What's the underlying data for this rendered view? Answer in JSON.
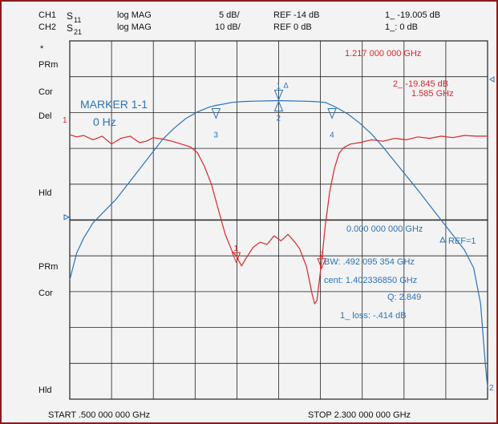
{
  "colors": {
    "frame": "#8b1a1a",
    "background": "#f3f3f3",
    "grid": "#222222",
    "ch1": "#d9262c",
    "ch2": "#2b74b8",
    "text": "#111111"
  },
  "header": {
    "ch1": {
      "label": "CH1",
      "param": "S",
      "param_sub": "11",
      "format": "log MAG",
      "scale": "5 dB/",
      "ref": "REF -14 dB",
      "marker": "1_ -19.005 dB"
    },
    "ch2": {
      "label": "CH2",
      "param": "S",
      "param_sub": "21",
      "format": "log MAG",
      "scale": "10 dB/",
      "ref": "REF 0 dB",
      "marker": "1_: 0     dB"
    }
  },
  "side_labels": {
    "star": "*",
    "prm1": "PRm",
    "cor1": "Cor",
    "del": "Del",
    "hld1": "Hld",
    "prm2": "PRm",
    "cor2": "Cor",
    "hld2": "Hld"
  },
  "annotations": {
    "ch1_marker_freq": "1.217 000 000 GHz",
    "ch1_marker2_value": "2_ -19.845 dB",
    "ch1_marker2_freq": "1.585 GHz",
    "marker_title": "MARKER 1-1",
    "marker_freq": "0 Hz",
    "ch2_marker_freq": "0.000 000 000 GHz",
    "ref_label": "REF=1",
    "bw": "BW:  .492 095 354 GHz",
    "cent": "cent: 1.402336850 GHz",
    "q": "Q: 2.849",
    "loss": "1_ loss: -.414   dB"
  },
  "footer": {
    "start": "START  .500 000 000 GHz",
    "stop": "STOP  2.300 000 000 GHz"
  },
  "chart_data": {
    "type": "line",
    "x_unit": "GHz",
    "xlim": [
      0.5,
      2.3
    ],
    "grid": true,
    "x_divisions": 10,
    "y_divisions": 10,
    "series": [
      {
        "name": "S11",
        "color": "#d9262c",
        "ylim": [
          -39,
          11
        ],
        "markers": [
          {
            "label": "1",
            "x": 1.217,
            "y": -19.005
          },
          {
            "label": "2",
            "x": 1.585,
            "y": -19.845
          }
        ],
        "points": [
          [
            0.5,
            -2.1
          ],
          [
            0.53,
            -2.4
          ],
          [
            0.56,
            -2.2
          ],
          [
            0.6,
            -2.8
          ],
          [
            0.64,
            -2.3
          ],
          [
            0.68,
            -3.4
          ],
          [
            0.72,
            -2.6
          ],
          [
            0.76,
            -2.3
          ],
          [
            0.8,
            -3.2
          ],
          [
            0.83,
            -3.0
          ],
          [
            0.86,
            -2.5
          ],
          [
            0.9,
            -2.7
          ],
          [
            0.94,
            -3.0
          ],
          [
            0.98,
            -3.4
          ],
          [
            1.02,
            -3.8
          ],
          [
            1.05,
            -4.6
          ],
          [
            1.08,
            -6.5
          ],
          [
            1.11,
            -9.0
          ],
          [
            1.14,
            -12.5
          ],
          [
            1.17,
            -16.0
          ],
          [
            1.2,
            -18.4
          ],
          [
            1.217,
            -19.0
          ],
          [
            1.24,
            -20.4
          ],
          [
            1.26,
            -19.3
          ],
          [
            1.29,
            -17.8
          ],
          [
            1.32,
            -17.1
          ],
          [
            1.35,
            -17.4
          ],
          [
            1.38,
            -16.2
          ],
          [
            1.41,
            -16.9
          ],
          [
            1.44,
            -16.0
          ],
          [
            1.47,
            -17.1
          ],
          [
            1.49,
            -18.0
          ],
          [
            1.52,
            -20.5
          ],
          [
            1.545,
            -24.5
          ],
          [
            1.555,
            -25.7
          ],
          [
            1.565,
            -25.2
          ],
          [
            1.585,
            -19.845
          ],
          [
            1.6,
            -15.0
          ],
          [
            1.62,
            -10.0
          ],
          [
            1.64,
            -6.8
          ],
          [
            1.66,
            -4.7
          ],
          [
            1.68,
            -3.9
          ],
          [
            1.71,
            -3.4
          ],
          [
            1.75,
            -3.2
          ],
          [
            1.8,
            -2.8
          ],
          [
            1.85,
            -3.0
          ],
          [
            1.9,
            -2.6
          ],
          [
            1.95,
            -2.8
          ],
          [
            2.0,
            -2.4
          ],
          [
            2.05,
            -2.6
          ],
          [
            2.1,
            -2.3
          ],
          [
            2.15,
            -2.5
          ],
          [
            2.2,
            -2.2
          ],
          [
            2.25,
            -2.3
          ],
          [
            2.3,
            -2.3
          ]
        ]
      },
      {
        "name": "S21",
        "color": "#2b74b8",
        "ylim": [
          -50,
          10
        ],
        "markers": [
          {
            "label": "1",
            "x": 1.4,
            "y": 0.0
          },
          {
            "label": "2",
            "x": 1.4,
            "y": 0.0
          },
          {
            "label": "3",
            "x": 1.13,
            "y": -0.8
          },
          {
            "label": "4",
            "x": 1.63,
            "y": -0.8
          }
        ],
        "points": [
          [
            0.5,
            -30.0
          ],
          [
            0.51,
            -28.5
          ],
          [
            0.53,
            -25.5
          ],
          [
            0.56,
            -23.0
          ],
          [
            0.6,
            -20.5
          ],
          [
            0.65,
            -18.5
          ],
          [
            0.7,
            -16.5
          ],
          [
            0.75,
            -14.0
          ],
          [
            0.8,
            -11.5
          ],
          [
            0.85,
            -9.0
          ],
          [
            0.9,
            -6.5
          ],
          [
            0.95,
            -4.6
          ],
          [
            1.0,
            -3.0
          ],
          [
            1.05,
            -1.9
          ],
          [
            1.1,
            -1.1
          ],
          [
            1.13,
            -0.8
          ],
          [
            1.16,
            -0.6
          ],
          [
            1.2,
            -0.3
          ],
          [
            1.25,
            -0.15
          ],
          [
            1.3,
            -0.1
          ],
          [
            1.35,
            -0.05
          ],
          [
            1.4,
            0.0
          ],
          [
            1.45,
            -0.05
          ],
          [
            1.5,
            -0.1
          ],
          [
            1.55,
            -0.15
          ],
          [
            1.6,
            -0.3
          ],
          [
            1.63,
            -0.8
          ],
          [
            1.66,
            -1.4
          ],
          [
            1.7,
            -2.3
          ],
          [
            1.75,
            -3.8
          ],
          [
            1.8,
            -5.6
          ],
          [
            1.85,
            -7.8
          ],
          [
            1.9,
            -10.2
          ],
          [
            1.95,
            -12.6
          ],
          [
            2.0,
            -15.0
          ],
          [
            2.05,
            -17.5
          ],
          [
            2.1,
            -20.0
          ],
          [
            2.15,
            -22.5
          ],
          [
            2.2,
            -25.0
          ],
          [
            2.24,
            -28.0
          ],
          [
            2.27,
            -34.0
          ],
          [
            2.29,
            -44.0
          ],
          [
            2.3,
            -48.0
          ]
        ]
      }
    ]
  }
}
